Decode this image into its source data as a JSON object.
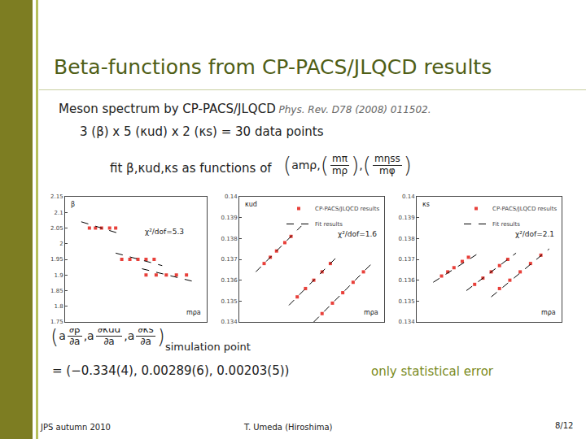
{
  "slide": {
    "title": "Beta-functions from CP-PACS/JLQCD results",
    "line1": "Meson spectrum by CP-PACS/JLQCD",
    "citation": "Phys. Rev. D78 (2008) 011502.",
    "line2": "3 (β) x 5 (κud) x 2 (κs) = 30 data points",
    "fit_text": "fit β,κud,κs as functions of",
    "fit_formula": [
      "(",
      "amρ",
      ",",
      "(",
      {
        "num": "mπ",
        "den": "mρ"
      },
      ")",
      ",",
      "(",
      {
        "num": "mηss",
        "den": "mφ"
      },
      ")"
    ],
    "deriv_formula": [
      "(",
      "a",
      {
        "num": "∂β",
        "den": "∂a"
      },
      ",",
      "a",
      {
        "num": "∂κud",
        "den": "∂a"
      },
      ",",
      "a",
      {
        "num": "∂κs",
        "den": "∂a"
      },
      ")",
      {
        "sub": "simulation point"
      }
    ],
    "result": "= (−0.334(4), 0.00289(6), 0.00203(5))",
    "note": "only statistical error",
    "footer_left": "JPS autumn 2010",
    "footer_center": "T. Umeda (Hiroshima)",
    "page": "8/12"
  },
  "chart_data": [
    {
      "type": "scatter",
      "y_label": "β",
      "x_label": "mρa",
      "annotation": "χ²/dof=5.3",
      "xlim": [
        0.3,
        1.0
      ],
      "ylim": [
        1.75,
        2.15
      ],
      "yticks": [
        1.75,
        1.8,
        1.85,
        1.9,
        1.95,
        2,
        2.05,
        2.1,
        2.15
      ],
      "tick_labels": "y",
      "grid": false,
      "series": [
        {
          "type": "scatter",
          "marker": "square",
          "color": "#e8403a",
          "x": [
            0.42,
            0.45,
            0.48,
            0.52,
            0.55,
            0.58,
            0.62,
            0.66,
            0.7,
            0.74,
            0.7,
            0.75,
            0.8,
            0.85,
            0.9
          ],
          "values": [
            2.05,
            2.05,
            2.05,
            2.05,
            2.05,
            1.95,
            1.95,
            1.95,
            1.95,
            1.95,
            1.9,
            1.9,
            1.9,
            1.9,
            1.9
          ]
        },
        {
          "type": "line",
          "line_style": "dashed",
          "color": "#000000",
          "x": [
            0.38,
            0.58,
            null,
            0.55,
            0.78,
            null,
            0.68,
            0.93
          ],
          "values": [
            2.07,
            2.03,
            null,
            1.97,
            1.93,
            null,
            1.92,
            1.88
          ]
        }
      ]
    },
    {
      "type": "scatter",
      "y_label": "κud",
      "x_label": "mρa",
      "annotation": "χ²/dof=1.6",
      "legend": "top right",
      "xlim": [
        0.3,
        1.0
      ],
      "ylim": [
        0.134,
        0.14
      ],
      "yticks": [
        0.134,
        0.135,
        0.136,
        0.137,
        0.138,
        0.139,
        0.14
      ],
      "tick_labels": "y",
      "grid": false,
      "series": [
        {
          "name": "CP-PACS/JLQCD results",
          "type": "scatter",
          "marker": "square",
          "color": "#e8403a",
          "x": [
            0.42,
            0.45,
            0.48,
            0.52,
            0.55,
            0.58,
            0.62,
            0.66,
            0.7,
            0.74,
            0.7,
            0.75,
            0.8,
            0.85,
            0.9
          ],
          "values": [
            0.1368,
            0.1371,
            0.1374,
            0.1378,
            0.1381,
            0.1352,
            0.1356,
            0.136,
            0.1364,
            0.1368,
            0.1344,
            0.1349,
            0.1354,
            0.1359,
            0.1364
          ]
        },
        {
          "name": "Fit results",
          "type": "line",
          "line_style": "dashed",
          "color": "#000000",
          "x": [
            0.38,
            0.6,
            null,
            0.54,
            0.78,
            null,
            0.66,
            0.94
          ],
          "values": [
            0.1364,
            0.1386,
            null,
            0.1348,
            0.1372,
            null,
            0.134,
            0.1368
          ]
        }
      ]
    },
    {
      "type": "scatter",
      "y_label": "κs",
      "x_label": "mρa",
      "annotation": "χ²/dof=2.1",
      "legend": "top right",
      "xlim": [
        0.3,
        1.0
      ],
      "ylim": [
        0.134,
        0.14
      ],
      "yticks": [
        0.134,
        0.135,
        0.136,
        0.137,
        0.138,
        0.139,
        0.14
      ],
      "tick_labels": "y",
      "grid": false,
      "series": [
        {
          "name": "CP-PACS/JLQCD results",
          "type": "scatter",
          "marker": "square",
          "color": "#e8403a",
          "x": [
            0.42,
            0.45,
            0.48,
            0.52,
            0.55,
            0.58,
            0.62,
            0.66,
            0.7,
            0.74,
            0.7,
            0.75,
            0.8,
            0.85,
            0.9
          ],
          "values": [
            0.1362,
            0.1364,
            0.1366,
            0.1369,
            0.1371,
            0.1358,
            0.1361,
            0.1364,
            0.1367,
            0.137,
            0.1356,
            0.136,
            0.1364,
            0.1368,
            0.1372
          ]
        },
        {
          "name": "Fit results",
          "type": "line",
          "line_style": "dashed",
          "color": "#000000",
          "x": [
            0.38,
            0.6,
            null,
            0.54,
            0.78,
            null,
            0.66,
            0.94
          ],
          "values": [
            0.1359,
            0.1373,
            null,
            0.1355,
            0.1373,
            null,
            0.1352,
            0.1375
          ]
        }
      ]
    }
  ]
}
